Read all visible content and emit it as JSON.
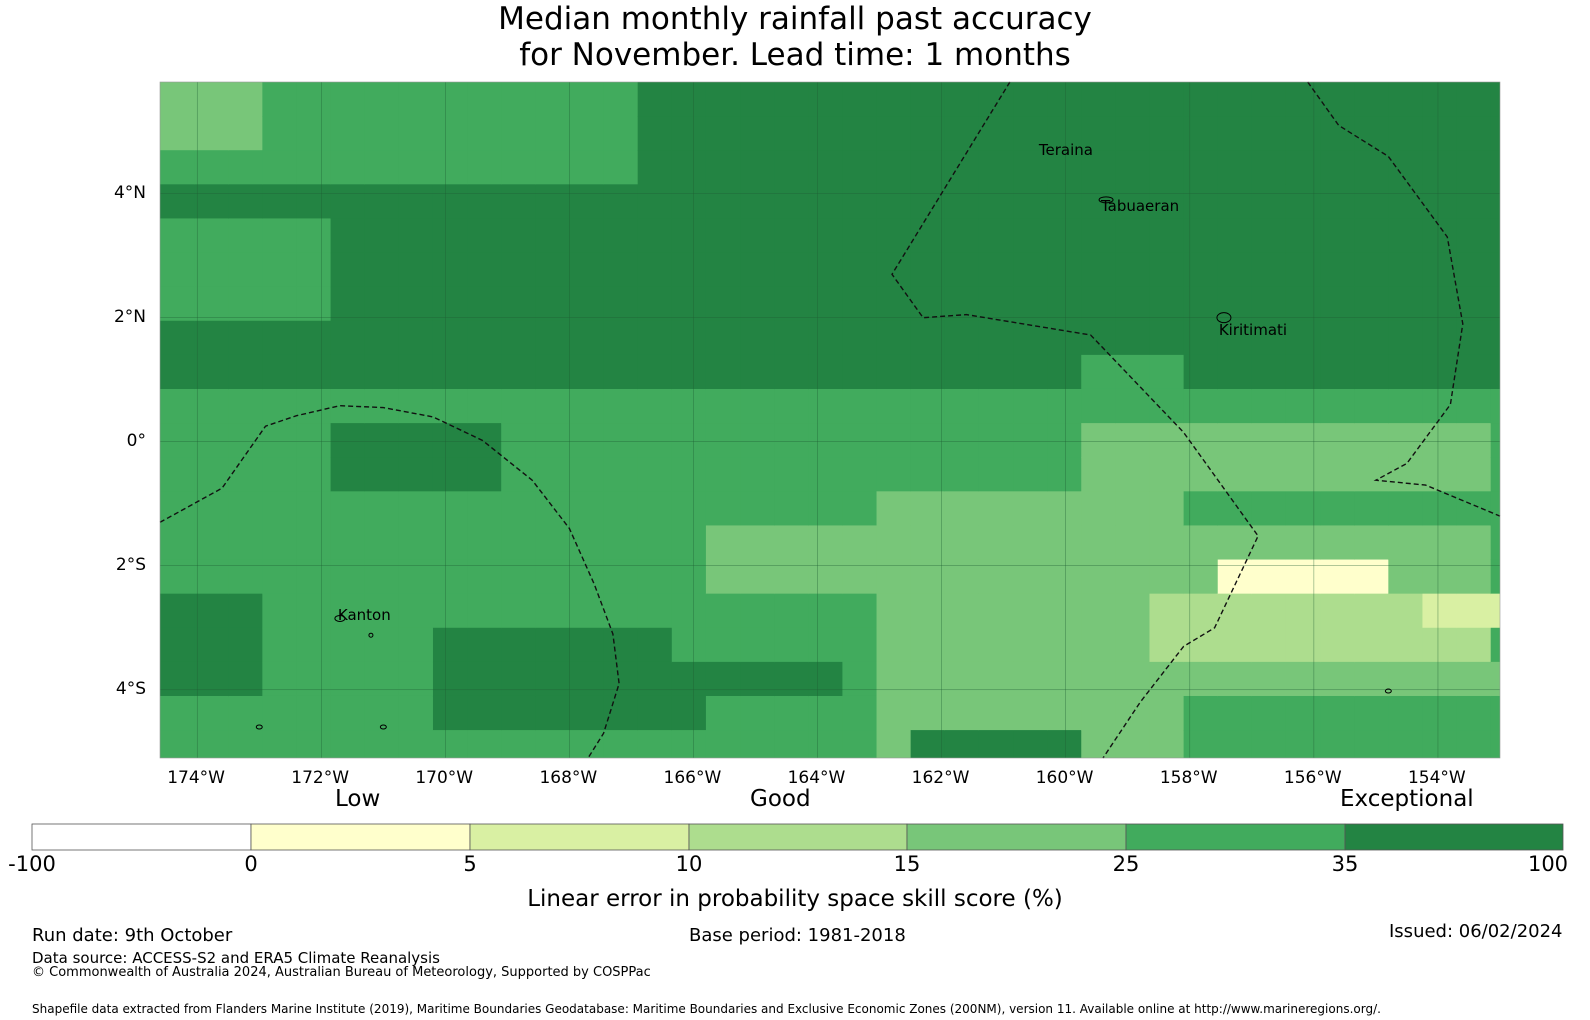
{
  "title": {
    "line1": "Median monthly rainfall past accuracy",
    "line2": "for November. Lead time: 1 months"
  },
  "map": {
    "lon_range": [
      -174.6,
      -153.0
    ],
    "lat_range": [
      -5.1,
      5.8
    ],
    "lon_ticks": [
      "174°W",
      "172°W",
      "170°W",
      "168°W",
      "166°W",
      "164°W",
      "162°W",
      "160°W",
      "158°W",
      "156°W",
      "154°W"
    ],
    "lat_ticks": [
      "4°N",
      "2°N",
      "0°",
      "2°S",
      "4°S"
    ],
    "places": [
      {
        "name": "Teraina",
        "lon": -160.4,
        "lat": 4.7
      },
      {
        "name": "Tabuaeran",
        "lon": -159.4,
        "lat": 3.8
      },
      {
        "name": "Kiritimati",
        "lon": -157.5,
        "lat": 1.8
      },
      {
        "name": "Kanton",
        "lon": -171.7,
        "lat": -2.8
      }
    ],
    "colors": {
      "neg": "#ffffff",
      "c0_5": "#ffffcc",
      "c5_10": "#d9f0a3",
      "c10_15": "#addd8e",
      "c15_25": "#78c679",
      "c25_35": "#41ab5d",
      "c35_100": "#238443"
    },
    "levels": "Grid of skill classes: 0=0-5, 1=5-10, 2=10-15, 3=15-25, 4=25-35, 5=35-100"
  },
  "colorbar": {
    "categories": [
      "Low",
      "Good",
      "Exceptional"
    ],
    "ticks": [
      "-100",
      "0",
      "5",
      "10",
      "15",
      "25",
      "35",
      "100"
    ],
    "label": "Linear error in probability space skill score (%)"
  },
  "footer": {
    "run_date": "Run date: 9th October",
    "base_period": "Base period: 1981-2018",
    "issued": "Issued: 06/02/2024",
    "data_source": "Data source: ACCESS-S2 and ERA5 Climate Reanalysis",
    "copyright": "© Commonwealth of Australia 2024, Australian Bureau of Meteorology, Supported by COSPPac",
    "shapefile": "Shapefile data extracted from Flanders Marine Institute (2019), Maritime Boundaries Geodatabase: Maritime Boundaries and Exclusive Economic Zones (200NM), version 11. Available online at http://www.marineregions.org/."
  }
}
